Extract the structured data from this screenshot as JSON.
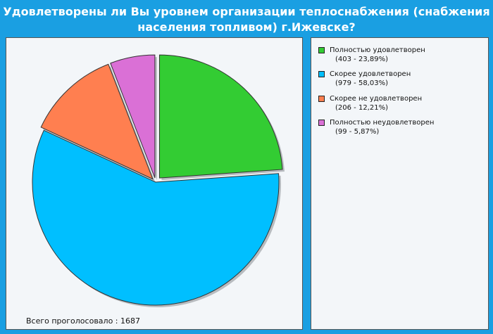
{
  "title_line1": "Удовлетворены ли Вы уровнем организации теплоснабжения (снабжения",
  "title_line2": "населения топливом) г.Ижевске?",
  "footer": "Всего проголосовало : 1687",
  "colors": {
    "background": "#1a9fe2",
    "panel": "#f3f6f9"
  },
  "chart_data": {
    "type": "pie",
    "total": 1687,
    "slices": [
      {
        "label": "Полностью удовлетворен",
        "detail": "(403 - 23,89%)",
        "value": 403,
        "percent": 23.89,
        "color": "#33cc33"
      },
      {
        "label": "Скорее удовлетворен",
        "detail": "(979 - 58,03%)",
        "value": 979,
        "percent": 58.03,
        "color": "#00bfff"
      },
      {
        "label": "Скорее не удовлетворен",
        "detail": "(206 - 12,21%)",
        "value": 206,
        "percent": 12.21,
        "color": "#ff7f50"
      },
      {
        "label": "Полностью неудовлетворен",
        "detail": "(99 - 5,87%)",
        "value": 99,
        "percent": 5.87,
        "color": "#da70d6"
      }
    ],
    "legend_position": "right"
  }
}
